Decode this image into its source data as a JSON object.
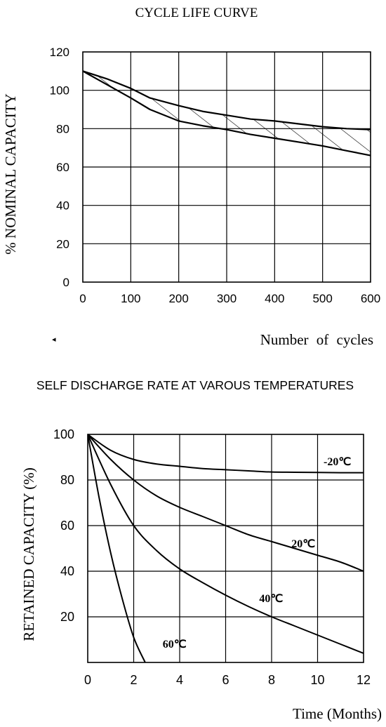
{
  "chart_data": [
    {
      "type": "line",
      "title": "CYCLE LIFE CURVE",
      "xlabel": "Number of cycles",
      "ylabel": "% NOMINAL CAPACITY",
      "xlim": [
        0,
        600
      ],
      "ylim": [
        0,
        120
      ],
      "x_ticks": [
        "0",
        "100",
        "200",
        "300",
        "400",
        "500",
        "600"
      ],
      "y_ticks": [
        "0",
        "20",
        "40",
        "60",
        "80",
        "100",
        "120"
      ],
      "grid": true,
      "series": [
        {
          "x": [
            0,
            50,
            100,
            140,
            200,
            250,
            300,
            350,
            400,
            450,
            500,
            550,
            600
          ],
          "y": [
            110,
            106,
            101,
            96,
            92,
            89,
            87,
            85,
            84,
            82.5,
            81,
            80,
            79.5
          ]
        },
        {
          "x": [
            0,
            50,
            100,
            140,
            200,
            250,
            300,
            350,
            400,
            450,
            500,
            550,
            600
          ],
          "y": [
            110,
            103,
            96,
            90,
            84,
            81.5,
            79.5,
            77,
            75,
            73,
            71,
            68.5,
            66
          ]
        }
      ],
      "shaded_between_series": true,
      "marker_glyph": "◂"
    },
    {
      "type": "line",
      "title": "SELF DISCHARGE RATE AT VAROUS TEMPERATURES",
      "xlabel": "Time  (Months)",
      "ylabel": "RETAINED CAPACITY (%)",
      "xlim": [
        0,
        12
      ],
      "ylim": [
        0,
        100
      ],
      "x_ticks": [
        "0",
        "2",
        "4",
        "6",
        "8",
        "10",
        "12"
      ],
      "y_ticks": [
        "20",
        "40",
        "60",
        "80",
        "100"
      ],
      "grid": true,
      "series": [
        {
          "label": "-20℃",
          "x": [
            0,
            1,
            2,
            3,
            4,
            5,
            6,
            7,
            8,
            9,
            10,
            11,
            12
          ],
          "y": [
            100,
            93,
            89,
            87,
            86,
            85,
            84.5,
            84,
            83.5,
            83.4,
            83.3,
            83.2,
            83.2
          ]
        },
        {
          "label": "20℃",
          "x": [
            0,
            1,
            2,
            3,
            4,
            5,
            6,
            7,
            8,
            9,
            10,
            11,
            12
          ],
          "y": [
            100,
            89,
            80,
            73,
            68,
            64,
            60,
            56,
            53,
            50,
            47,
            44,
            40
          ]
        },
        {
          "label": "40℃",
          "x": [
            0,
            1,
            2,
            3,
            4,
            5,
            6,
            7,
            8,
            9,
            10,
            11,
            12
          ],
          "y": [
            100,
            78,
            60,
            49,
            41,
            35,
            29.5,
            24.5,
            20,
            16,
            12,
            8,
            4
          ]
        },
        {
          "label": "60℃",
          "x": [
            0,
            0.5,
            1,
            1.5,
            2,
            2.5
          ],
          "y": [
            100,
            72,
            48,
            28,
            11,
            0
          ]
        }
      ]
    }
  ]
}
